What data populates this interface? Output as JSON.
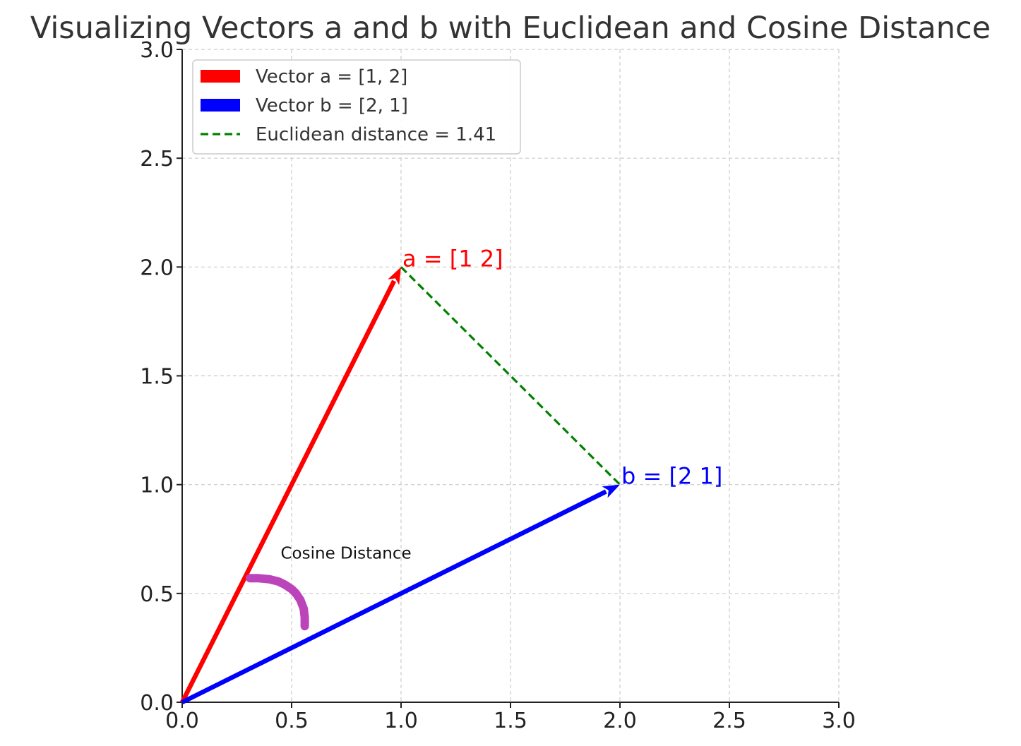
{
  "chart_data": {
    "type": "line",
    "title": "Visualizing Vectors a and b with Euclidean and Cosine Distance",
    "xlabel": "",
    "ylabel": "",
    "xlim": [
      0,
      3
    ],
    "ylim": [
      0,
      3
    ],
    "grid": true,
    "legend_position": "top-left",
    "x_ticks": [
      "0.0",
      "0.5",
      "1.0",
      "1.5",
      "2.0",
      "2.5",
      "3.0"
    ],
    "y_ticks": [
      "0.0",
      "0.5",
      "1.0",
      "1.5",
      "2.0",
      "2.5",
      "3.0"
    ],
    "vectors": [
      {
        "legend": "Vector a = [1, 2]",
        "label": "a = [1 2]",
        "x0": 0,
        "y0": 0,
        "x1": 1,
        "y1": 2,
        "color": "#ff0000"
      },
      {
        "legend": "Vector b = [2, 1]",
        "label": "b = [2 1]",
        "x0": 0,
        "y0": 0,
        "x1": 2,
        "y1": 1,
        "color": "#0000ff"
      }
    ],
    "euclidean_line": {
      "legend": "Euclidean distance = 1.41",
      "x": [
        1,
        2
      ],
      "y": [
        2,
        1
      ],
      "color": "#008000"
    },
    "cosine_arc": {
      "label": "Cosine Distance",
      "color": "#bb44bb",
      "label_x": 0.45,
      "label_y": 0.66,
      "x": [
        0.31,
        0.35,
        0.4,
        0.44,
        0.47,
        0.5,
        0.52,
        0.54,
        0.555,
        0.56,
        0.56
      ],
      "y": [
        0.57,
        0.57,
        0.565,
        0.555,
        0.54,
        0.52,
        0.5,
        0.47,
        0.43,
        0.39,
        0.35
      ]
    }
  }
}
